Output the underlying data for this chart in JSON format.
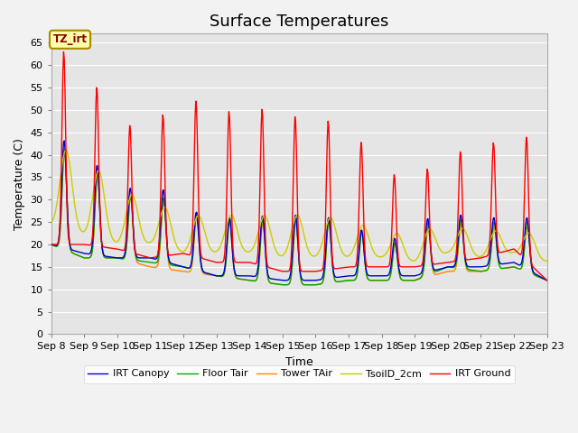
{
  "title": "Surface Temperatures",
  "xlabel": "Time",
  "ylabel": "Temperature (C)",
  "ylim": [
    0,
    67
  ],
  "yticks": [
    0,
    5,
    10,
    15,
    20,
    25,
    30,
    35,
    40,
    45,
    50,
    55,
    60,
    65
  ],
  "annotation": "TZ_irt",
  "background_color": "#e5e5e5",
  "fig_facecolor": "#f2f2f2",
  "legend": [
    "IRT Ground",
    "IRT Canopy",
    "Floor Tair",
    "Tower TAir",
    "TsoilD_2cm"
  ],
  "line_colors": [
    "#ff0000",
    "#0000cc",
    "#00aa00",
    "#ff8800",
    "#cccc00"
  ],
  "xtick_labels": [
    "Sep 8",
    "Sep 9",
    "Sep 10",
    "Sep 11",
    "Sep 12",
    "Sep 13",
    "Sep 14",
    "Sep 15",
    "Sep 16",
    "Sep 17",
    "Sep 18",
    "Sep 19",
    "Sep 20",
    "Sep 21",
    "Sep 22",
    "Sep 23"
  ],
  "grid_color": "#ffffff",
  "title_fontsize": 13,
  "label_fontsize": 9,
  "tick_fontsize": 8,
  "irt_ground_peaks": [
    65,
    60,
    47,
    46,
    54,
    49,
    51,
    49,
    48,
    47,
    36,
    35,
    40,
    42,
    44,
    44
  ],
  "irt_ground_mins": [
    20,
    20,
    19,
    17,
    18,
    16,
    16,
    14,
    14,
    15,
    15,
    15,
    16,
    17,
    19,
    12
  ],
  "canopy_peaks": [
    44,
    42,
    31,
    35,
    28,
    26,
    26,
    27,
    26,
    26,
    19,
    25,
    27,
    26,
    26,
    26
  ],
  "canopy_mins": [
    20,
    18,
    17,
    17,
    15,
    13,
    13,
    12,
    12,
    13,
    13,
    13,
    15,
    15,
    16,
    12
  ],
  "floor_peaks": [
    42,
    40,
    30,
    32,
    28,
    26,
    26,
    26,
    26,
    26,
    18,
    24,
    26,
    25,
    25,
    25
  ],
  "floor_mins": [
    20,
    17,
    17,
    16,
    15,
    13,
    12,
    11,
    11,
    12,
    12,
    12,
    15,
    14,
    15,
    12
  ],
  "tower_peaks": [
    42,
    40,
    30,
    32,
    27,
    25,
    25,
    25,
    25,
    26,
    18,
    23,
    25,
    24,
    24,
    24
  ],
  "tower_mins": [
    20,
    17,
    17,
    15,
    14,
    13,
    12,
    11,
    11,
    12,
    12,
    12,
    14,
    14,
    15,
    12
  ],
  "tsoil_peaks": [
    42,
    40,
    32,
    30,
    26,
    27,
    26,
    27,
    26,
    26,
    22,
    23,
    24,
    23,
    23,
    22
  ],
  "tsoil_mins": [
    24,
    22,
    20,
    20,
    18,
    18,
    18,
    17,
    17,
    17,
    17,
    16,
    18,
    17,
    18,
    16
  ]
}
